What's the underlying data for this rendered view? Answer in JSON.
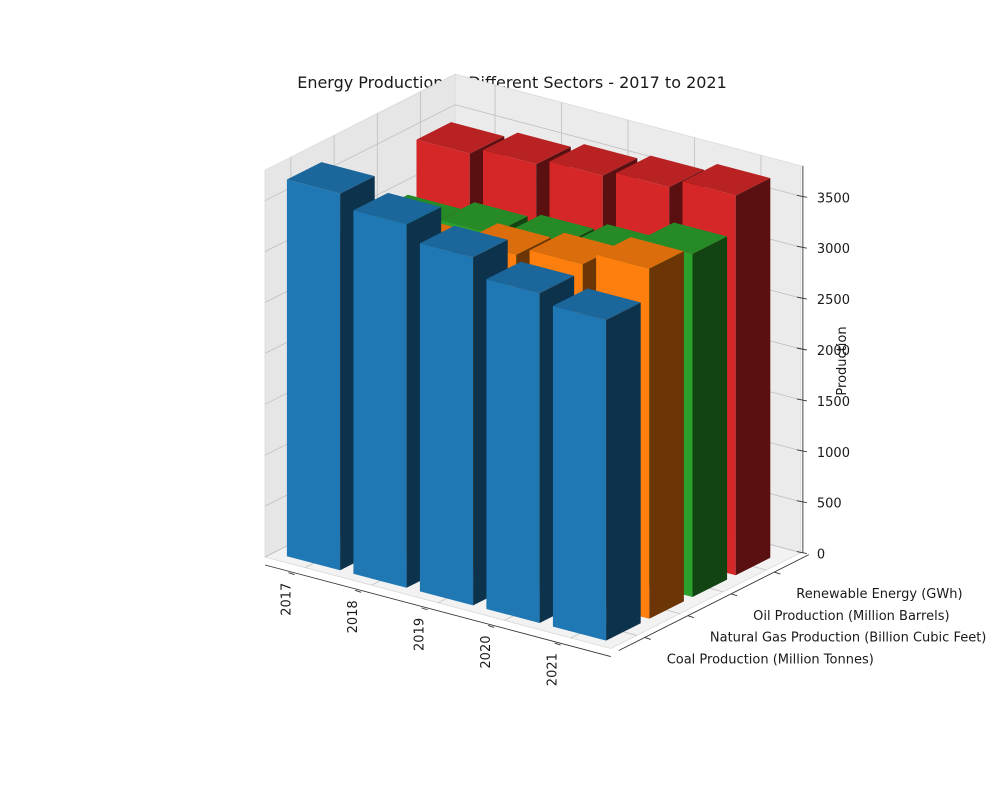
{
  "chart_data": {
    "type": "bar3d",
    "title": "Energy Production in Different Sectors - 2017 to 2021",
    "zlabel": "Production",
    "years": [
      "2017",
      "2018",
      "2019",
      "2020",
      "2021"
    ],
    "zlim": [
      0,
      3800
    ],
    "zticks": [
      "0",
      "500",
      "1000",
      "1500",
      "2000",
      "2500",
      "3000",
      "3500"
    ],
    "grid": true,
    "series": [
      {
        "name": "Coal Production (Million Tonnes)",
        "color": "#1f77b4",
        "values": [
          3700,
          3570,
          3420,
          3240,
          3150
        ]
      },
      {
        "name": "Natural Gas Production (Billion Cubic Feet)",
        "color": "#ff7f0e",
        "values": [
          2900,
          3080,
          3230,
          3310,
          3440
        ]
      },
      {
        "name": "Oil Production (Million Barrels)",
        "color": "#2ca02c",
        "values": [
          2950,
          3050,
          3100,
          3180,
          3370
        ]
      },
      {
        "name": "Renewable Energy (GWh)",
        "color": "#d62728",
        "values": [
          3450,
          3520,
          3580,
          3640,
          3730
        ]
      }
    ]
  }
}
